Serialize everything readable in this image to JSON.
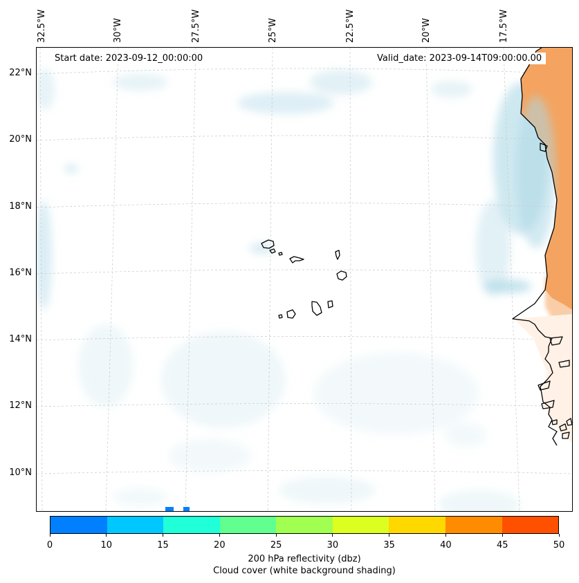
{
  "map": {
    "start_label": "Start date: 2023-09-12_00:00:00",
    "valid_label": "Valid_date: 2023-09-14T09:00:00.00",
    "longitude_labels": [
      "32.5°W",
      "30°W",
      "27.5°W",
      "25°W",
      "22.5°W",
      "20°W",
      "17.5°W"
    ],
    "latitude_labels": [
      "22°N",
      "20°N",
      "18°N",
      "16°N",
      "14°N",
      "12°N",
      "10°N"
    ],
    "land_color": "#f4a460",
    "cloud_color": "#add8e6",
    "coastline_color": "#000000",
    "gridline_color": "#c8c8c8"
  },
  "colorbar": {
    "ticks": [
      "0",
      "10",
      "15",
      "20",
      "25",
      "30",
      "35",
      "40",
      "45",
      "50"
    ],
    "colors": [
      "#0080ff",
      "#00c8ff",
      "#20ffd8",
      "#60ff90",
      "#a0ff50",
      "#dcff20",
      "#ffd800",
      "#ff8c00",
      "#ff5000"
    ],
    "title_line1": "200 hPa reflectivity (dbz)",
    "title_line2": "Cloud cover (white background shading)"
  }
}
